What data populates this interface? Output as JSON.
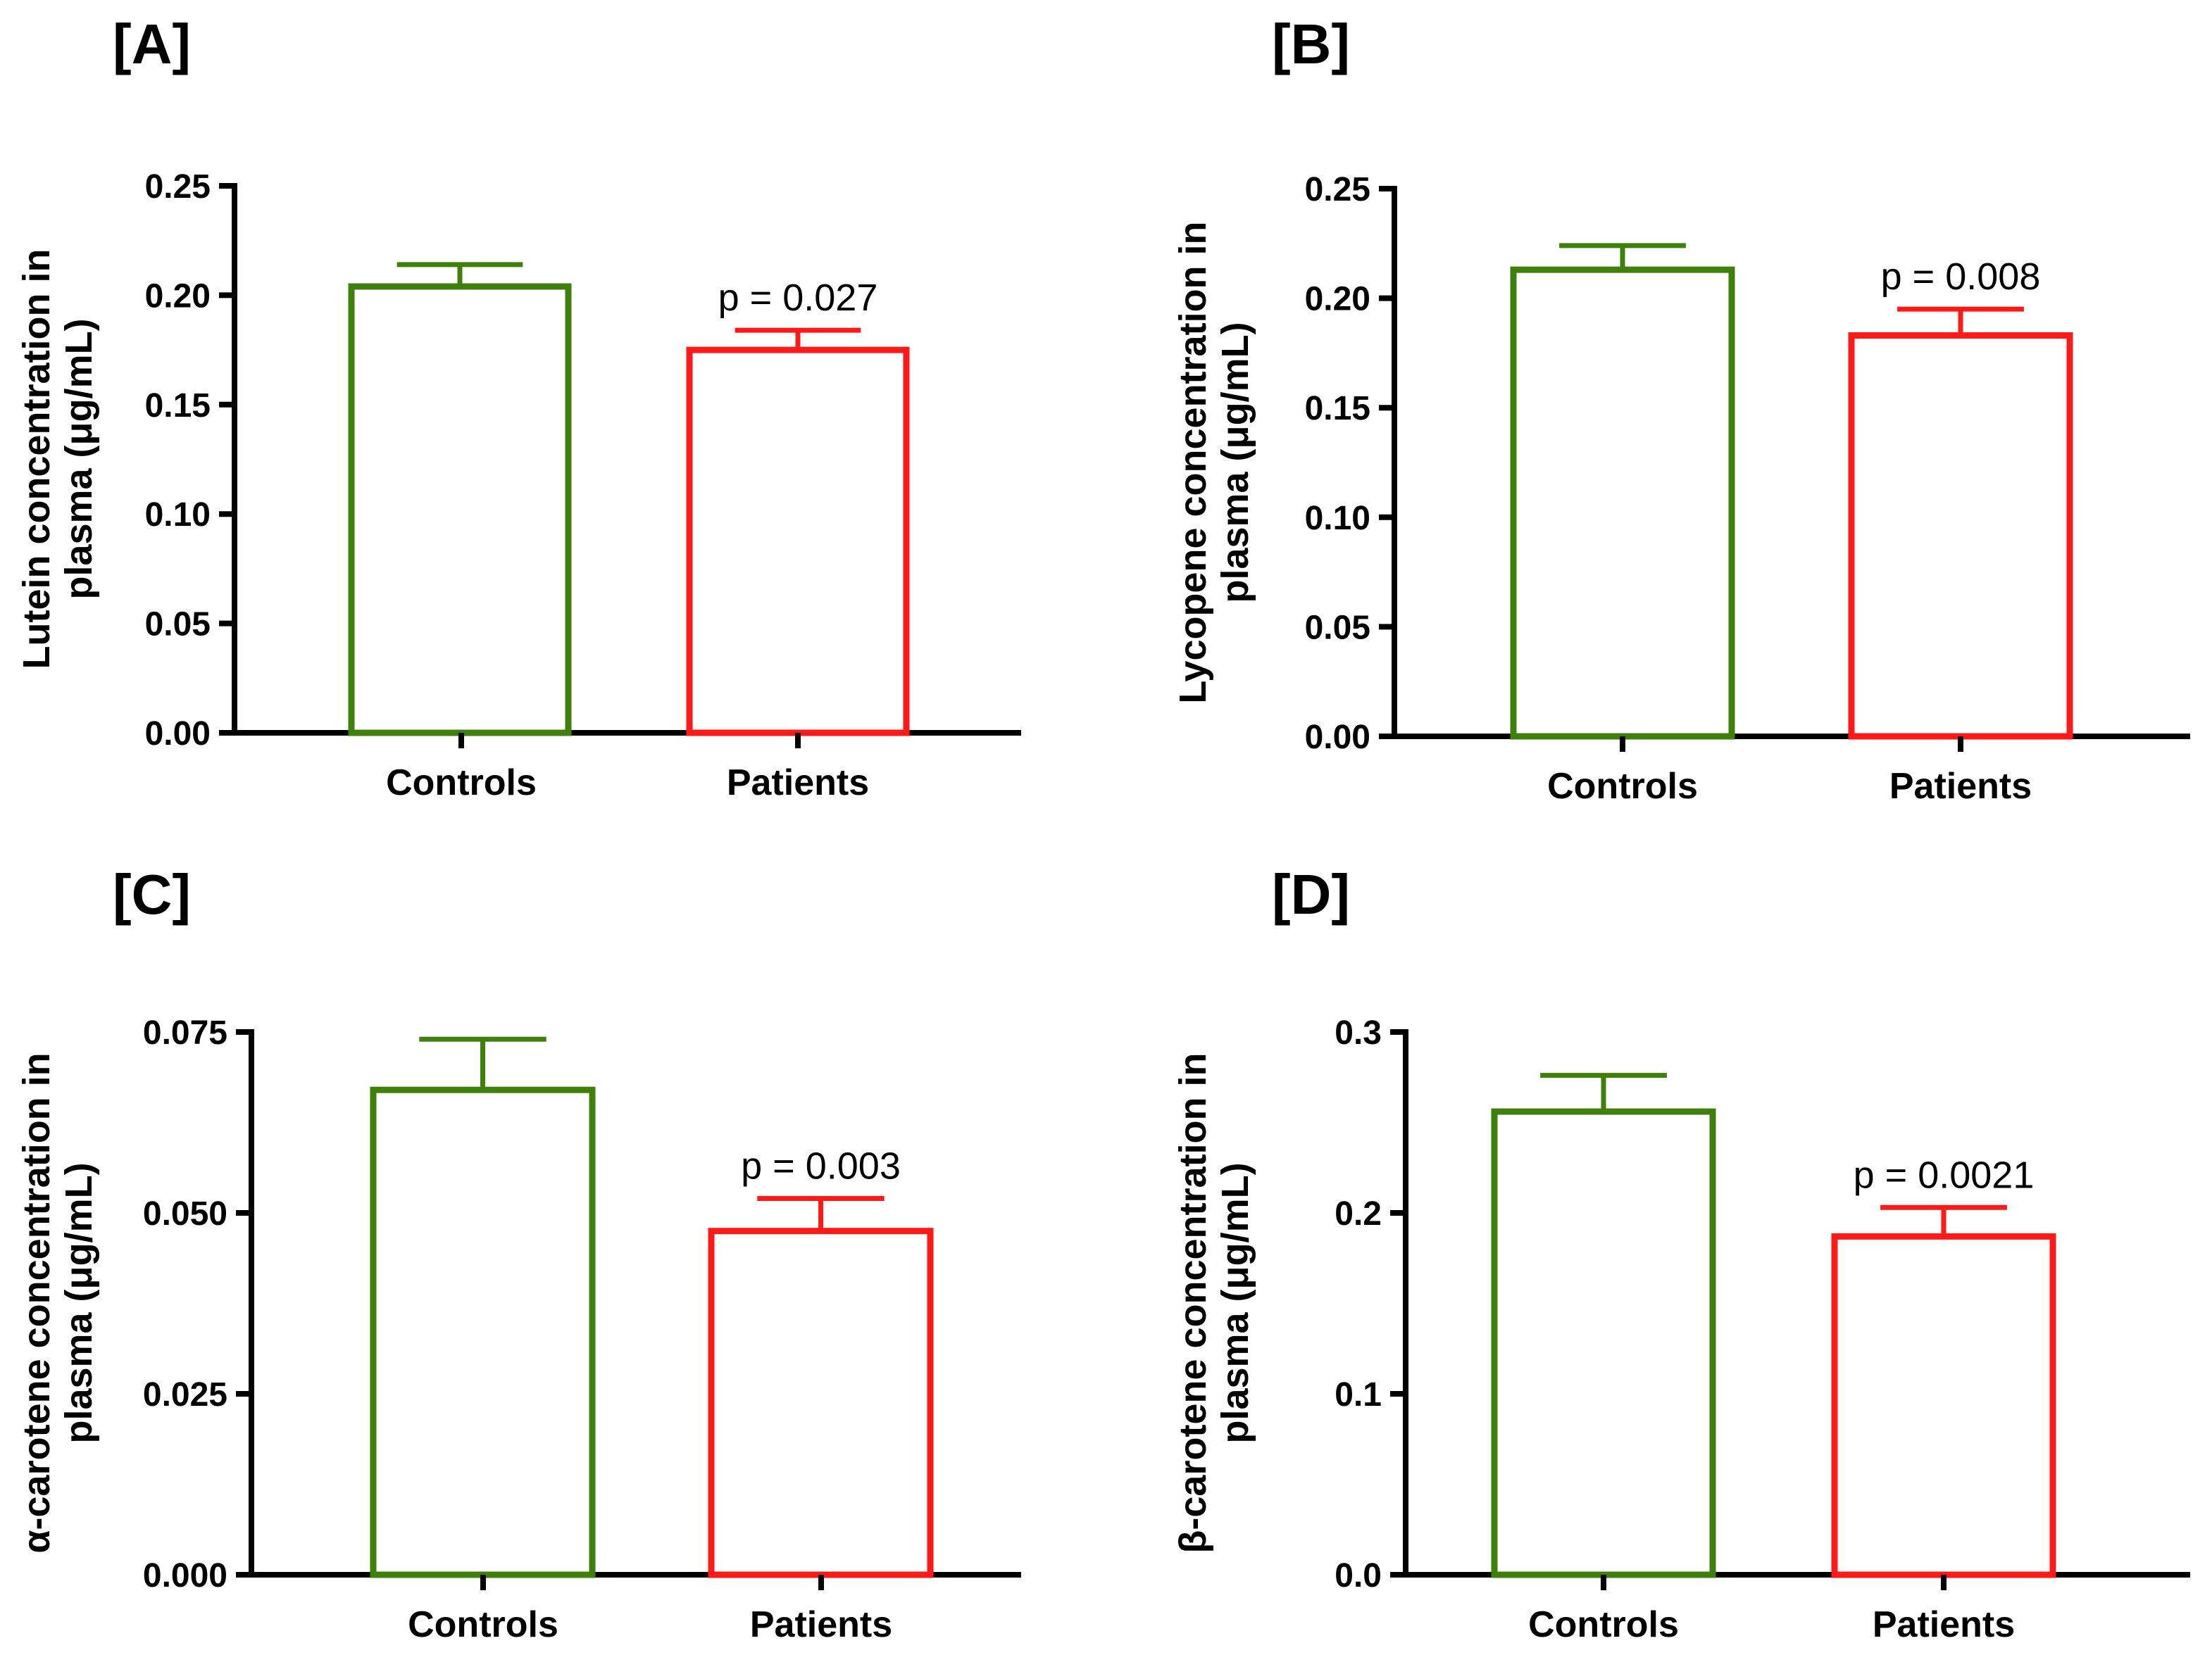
{
  "colors": {
    "controls": "#3f7f0b",
    "patients": "#ff1a1a",
    "axis": "#000000"
  },
  "chart_data": [
    {
      "panel": "[A]",
      "type": "bar",
      "categories": [
        "Controls",
        "Patients"
      ],
      "values": [
        0.204,
        0.175
      ],
      "errors": [
        0.01,
        0.009
      ],
      "ylabel_lines": [
        "Lutein concentration in",
        "plasma (μg/mL)"
      ],
      "ylim": [
        0,
        0.25
      ],
      "yticks": [
        "0.00",
        "0.05",
        "0.10",
        "0.15",
        "0.20",
        "0.25"
      ],
      "annotation": "p = 0.027",
      "grid": false
    },
    {
      "panel": "[B]",
      "type": "bar",
      "categories": [
        "Controls",
        "Patients"
      ],
      "values": [
        0.213,
        0.183
      ],
      "errors": [
        0.011,
        0.012
      ],
      "ylabel_lines": [
        "Lycopene concentration in",
        "plasma (μg/mL)"
      ],
      "ylim": [
        0,
        0.25
      ],
      "yticks": [
        "0.00",
        "0.05",
        "0.10",
        "0.15",
        "0.20",
        "0.25"
      ],
      "annotation": "p = 0.008",
      "grid": false
    },
    {
      "panel": "[C]",
      "type": "bar",
      "categories": [
        "Controls",
        "Patients"
      ],
      "values": [
        0.067,
        0.0475
      ],
      "errors": [
        0.007,
        0.0045
      ],
      "ylabel_lines": [
        "α-carotene concentration in",
        "plasma (μg/mL)"
      ],
      "ylim": [
        0,
        0.075
      ],
      "yticks": [
        "0.000",
        "0.025",
        "0.050",
        "0.075"
      ],
      "annotation": "p = 0.003",
      "grid": false
    },
    {
      "panel": "[D]",
      "type": "bar",
      "categories": [
        "Controls",
        "Patients"
      ],
      "values": [
        0.256,
        0.187
      ],
      "errors": [
        0.02,
        0.016
      ],
      "ylabel_lines": [
        "β-carotene concentration in",
        "plasma (μg/mL)"
      ],
      "ylim": [
        0,
        0.3
      ],
      "yticks": [
        "0.0",
        "0.1",
        "0.2",
        "0.3"
      ],
      "annotation": "p = 0.0021",
      "grid": false
    }
  ]
}
